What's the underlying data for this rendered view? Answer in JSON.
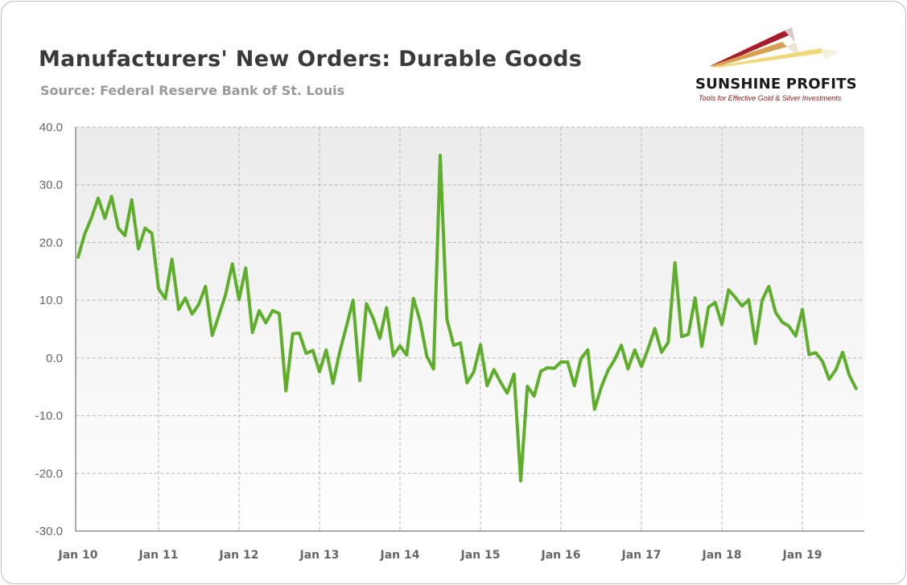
{
  "header": {
    "title": "Manufacturers' New Orders: Durable Goods",
    "source": "Source: Federal Reserve Bank of St. Louis"
  },
  "logo": {
    "name": "SUNSHINE PROFITS",
    "tagline": "Tools for Effective Gold & Silver Investments"
  },
  "colors": {
    "line": "#5fae2b",
    "plot_background_top": "#ececec",
    "plot_background_bottom": "#ffffff",
    "grid": "#b5b5b5",
    "axis_text": "#666666"
  },
  "chart_data": {
    "type": "line",
    "title": "Manufacturers' New Orders: Durable Goods",
    "xlabel": "",
    "ylabel": "",
    "ylim": [
      -30,
      40
    ],
    "y_ticks": [
      40,
      30,
      20,
      10,
      0,
      -10,
      -20,
      -30
    ],
    "y_tick_labels": [
      "40.0",
      "30.0",
      "20.0",
      "10.0",
      "0.0",
      "-10.0",
      "-20.0",
      "-30.0"
    ],
    "x_ticks": [
      "2010-01",
      "2011-01",
      "2012-01",
      "2013-01",
      "2014-01",
      "2015-01",
      "2016-01",
      "2017-01",
      "2018-01",
      "2019-01"
    ],
    "x_tick_labels": [
      "Jan 10",
      "Jan 11",
      "Jan 12",
      "Jan 13",
      "Jan 14",
      "Jan 15",
      "Jan 16",
      "Jan 17",
      "Jan 18",
      "Jan 19"
    ],
    "grid": true,
    "legend": "none",
    "series": [
      {
        "x": [
          "2010-01",
          "2010-02",
          "2010-03",
          "2010-04",
          "2010-05",
          "2010-06",
          "2010-07",
          "2010-08",
          "2010-09",
          "2010-10",
          "2010-11",
          "2010-12",
          "2011-01",
          "2011-02",
          "2011-03",
          "2011-04",
          "2011-05",
          "2011-06",
          "2011-07",
          "2011-08",
          "2011-09",
          "2011-10",
          "2011-11",
          "2011-12",
          "2012-01",
          "2012-02",
          "2012-03",
          "2012-04",
          "2012-05",
          "2012-06",
          "2012-07",
          "2012-08",
          "2012-09",
          "2012-10",
          "2012-11",
          "2012-12",
          "2013-01",
          "2013-02",
          "2013-03",
          "2013-04",
          "2013-05",
          "2013-06",
          "2013-07",
          "2013-08",
          "2013-09",
          "2013-10",
          "2013-11",
          "2013-12",
          "2014-01",
          "2014-02",
          "2014-03",
          "2014-04",
          "2014-05",
          "2014-06",
          "2014-07",
          "2014-08",
          "2014-09",
          "2014-10",
          "2014-11",
          "2014-12",
          "2015-01",
          "2015-02",
          "2015-03",
          "2015-04",
          "2015-05",
          "2015-06",
          "2015-07",
          "2015-08",
          "2015-09",
          "2015-10",
          "2015-11",
          "2015-12",
          "2016-01",
          "2016-02",
          "2016-03",
          "2016-04",
          "2016-05",
          "2016-06",
          "2016-07",
          "2016-08",
          "2016-09",
          "2016-10",
          "2016-11",
          "2016-12",
          "2017-01",
          "2017-02",
          "2017-03",
          "2017-04",
          "2017-05",
          "2017-06",
          "2017-07",
          "2017-08",
          "2017-09",
          "2017-10",
          "2017-11",
          "2017-12",
          "2018-01",
          "2018-02",
          "2018-03",
          "2018-04",
          "2018-05",
          "2018-06",
          "2018-07",
          "2018-08",
          "2018-09",
          "2018-10",
          "2018-11",
          "2018-12",
          "2019-01",
          "2019-02",
          "2019-03",
          "2019-04",
          "2019-05",
          "2019-06",
          "2019-07",
          "2019-08",
          "2019-09"
        ],
        "values": [
          17.5,
          21.5,
          24.3,
          27.7,
          24.2,
          28.0,
          22.5,
          21.2,
          27.4,
          18.9,
          22.5,
          21.6,
          12.0,
          10.3,
          17.1,
          8.4,
          10.4,
          7.6,
          9.3,
          12.4,
          3.9,
          7.4,
          11.0,
          16.3,
          10.1,
          15.6,
          4.4,
          8.2,
          6.1,
          8.2,
          7.7,
          -5.7,
          4.2,
          4.3,
          0.8,
          1.3,
          -2.4,
          1.4,
          -4.4,
          1.0,
          5.4,
          10.0,
          -3.9,
          9.4,
          6.9,
          3.4,
          8.7,
          0.4,
          2.1,
          0.5,
          10.3,
          6.4,
          0.3,
          -1.9,
          35.1,
          6.7,
          2.2,
          2.6,
          -4.3,
          -2.4,
          2.3,
          -4.8,
          -2.0,
          -4.2,
          -6.1,
          -2.8,
          -21.3,
          -4.9,
          -6.6,
          -2.3,
          -1.7,
          -1.8,
          -0.7,
          -0.7,
          -4.8,
          -0.1,
          1.4,
          -8.9,
          -5.1,
          -2.2,
          -0.3,
          2.2,
          -1.9,
          1.4,
          -1.5,
          1.6,
          5.1,
          1.0,
          2.7,
          16.5,
          3.7,
          4.1,
          10.4,
          2.0,
          8.8,
          9.6,
          5.8,
          11.8,
          10.5,
          9.0,
          10.1,
          2.5,
          10.0,
          12.4,
          7.9,
          6.2,
          5.5,
          3.8,
          8.4,
          0.6,
          0.9,
          -0.6,
          -3.7,
          -2.0,
          1.0,
          -3.0,
          -5.3
        ]
      }
    ]
  }
}
